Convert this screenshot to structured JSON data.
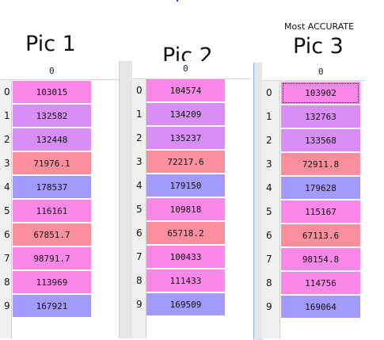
{
  "labels": {
    "pic1": "Pic 1",
    "pic2": "Pic 2",
    "pic3": "Pic 3",
    "most_accurate": "Most ACCURATE",
    "col_header": "0"
  },
  "colors": {
    "violet": "#d98ef7",
    "pink": "#fb88e9",
    "red": "#fb8f9d",
    "blue": "#a29afd"
  },
  "tables": [
    {
      "name": "Pic 1",
      "rows": [
        {
          "index": "0",
          "value": "103015",
          "color": "pink"
        },
        {
          "index": "1",
          "value": "132582",
          "color": "violet"
        },
        {
          "index": "2",
          "value": "132448",
          "color": "violet"
        },
        {
          "index": "3",
          "value": "71976.1",
          "color": "red"
        },
        {
          "index": "4",
          "value": "178537",
          "color": "blue"
        },
        {
          "index": "5",
          "value": "116161",
          "color": "pink"
        },
        {
          "index": "6",
          "value": "67851.7",
          "color": "red"
        },
        {
          "index": "7",
          "value": "98791.7",
          "color": "pink"
        },
        {
          "index": "8",
          "value": "113969",
          "color": "pink"
        },
        {
          "index": "9",
          "value": "167921",
          "color": "blue"
        }
      ]
    },
    {
      "name": "Pic 2",
      "rows": [
        {
          "index": "0",
          "value": "104574",
          "color": "pink"
        },
        {
          "index": "1",
          "value": "134209",
          "color": "violet"
        },
        {
          "index": "2",
          "value": "135237",
          "color": "violet"
        },
        {
          "index": "3",
          "value": "72217.6",
          "color": "red"
        },
        {
          "index": "4",
          "value": "179150",
          "color": "blue"
        },
        {
          "index": "5",
          "value": "109818",
          "color": "pink"
        },
        {
          "index": "6",
          "value": "65718.2",
          "color": "red"
        },
        {
          "index": "7",
          "value": "100433",
          "color": "pink"
        },
        {
          "index": "8",
          "value": "111433",
          "color": "pink"
        },
        {
          "index": "9",
          "value": "169509",
          "color": "blue"
        }
      ]
    },
    {
      "name": "Pic 3",
      "rows": [
        {
          "index": "0",
          "value": "103902",
          "color": "pink"
        },
        {
          "index": "1",
          "value": "132763",
          "color": "violet"
        },
        {
          "index": "2",
          "value": "133568",
          "color": "violet"
        },
        {
          "index": "3",
          "value": "72911.8",
          "color": "red"
        },
        {
          "index": "4",
          "value": "179628",
          "color": "blue"
        },
        {
          "index": "5",
          "value": "115167",
          "color": "pink"
        },
        {
          "index": "6",
          "value": "67113.6",
          "color": "red"
        },
        {
          "index": "7",
          "value": "98154.8",
          "color": "pink"
        },
        {
          "index": "8",
          "value": "114756",
          "color": "pink"
        },
        {
          "index": "9",
          "value": "169064",
          "color": "blue"
        }
      ]
    }
  ]
}
